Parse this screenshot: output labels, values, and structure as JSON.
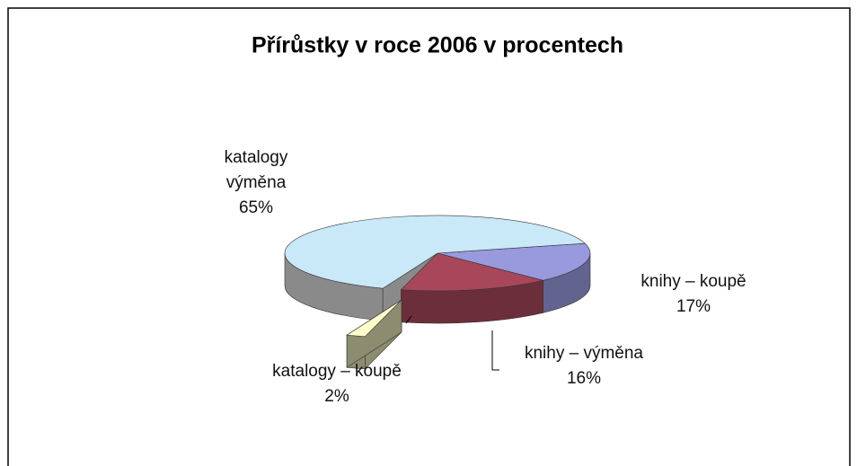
{
  "chart_data": {
    "type": "pie",
    "title": "Přírůstky v roce 2006 v procentech",
    "categories": [
      "knihy – koupě",
      "knihy – výměna",
      "katalogy – koupě",
      "katalogy výměna"
    ],
    "values": [
      17,
      16,
      2,
      65
    ],
    "value_labels": [
      "17%",
      "16%",
      "2%",
      "65%"
    ],
    "colors": [
      "#9999dd",
      "#a8475a",
      "#ffffcc",
      "#c9e8f8"
    ]
  }
}
